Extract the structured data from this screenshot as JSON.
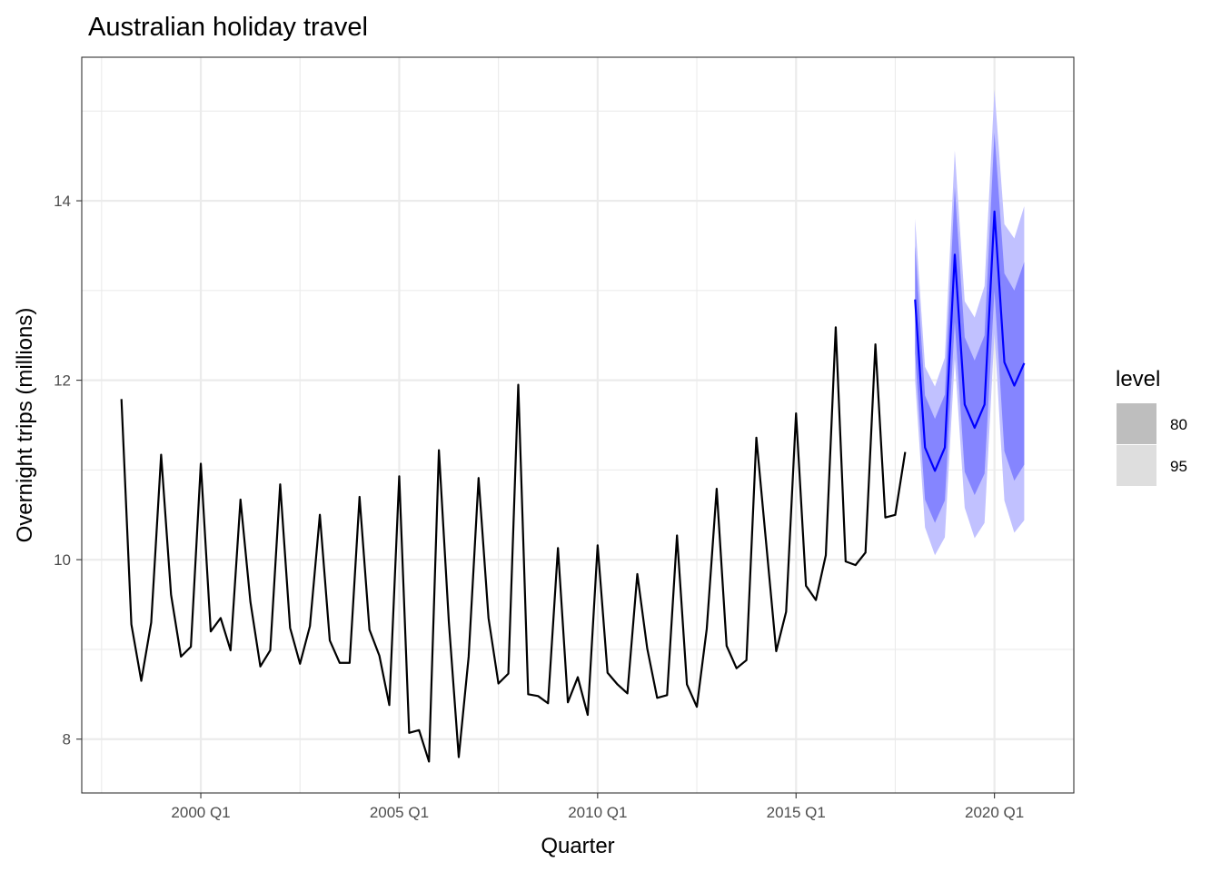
{
  "chart_data": {
    "type": "line",
    "title": "Australian holiday travel",
    "xlabel": "Quarter",
    "ylabel": "Overnight trips (millions)",
    "x_ticks": [
      "2000 Q1",
      "2005 Q1",
      "2010 Q1",
      "2015 Q1",
      "2020 Q1"
    ],
    "y_ticks": [
      8,
      10,
      12,
      14
    ],
    "ylim": [
      7.4,
      15.6
    ],
    "xlim": [
      "1997 Q1",
      "2022 Q1"
    ],
    "grid": true,
    "start": "1998 Q1",
    "history": {
      "values": [
        11.79,
        9.28,
        8.65,
        9.3,
        11.17,
        9.61,
        8.92,
        9.03,
        11.07,
        9.2,
        9.35,
        8.99,
        10.67,
        9.53,
        8.81,
        8.99,
        10.84,
        9.24,
        8.84,
        9.26,
        10.5,
        9.1,
        8.85,
        8.85,
        10.7,
        9.22,
        8.93,
        8.38,
        10.93,
        8.07,
        8.1,
        7.75,
        11.22,
        9.31,
        7.8,
        8.92,
        10.91,
        9.35,
        8.62,
        8.73,
        11.95,
        8.5,
        8.48,
        8.4,
        10.13,
        8.41,
        8.69,
        8.27,
        10.16,
        8.74,
        8.61,
        8.51,
        9.84,
        9.01,
        8.46,
        8.49,
        10.27,
        8.61,
        8.36,
        9.23,
        10.79,
        9.04,
        8.79,
        8.88,
        11.36,
        10.17,
        8.98,
        9.42,
        11.63,
        9.71,
        9.55,
        10.05,
        12.59,
        9.98,
        9.94,
        10.08,
        12.4,
        10.47,
        10.5,
        11.2
      ]
    },
    "forecast": {
      "start": "2018 Q1",
      "mean": [
        12.9,
        11.25,
        10.99,
        11.25,
        13.4,
        11.73,
        11.47,
        11.73,
        13.88,
        12.2,
        11.94,
        12.19
      ],
      "lo80": [
        12.3,
        10.67,
        10.41,
        10.66,
        12.65,
        10.98,
        10.72,
        10.96,
        13.0,
        11.21,
        10.88,
        11.06
      ],
      "hi80": [
        13.5,
        11.83,
        11.57,
        11.84,
        14.15,
        12.48,
        12.22,
        12.5,
        14.76,
        13.19,
        13.0,
        13.32
      ],
      "lo95": [
        12.0,
        10.36,
        10.05,
        10.25,
        12.24,
        10.58,
        10.24,
        10.41,
        12.52,
        10.66,
        10.3,
        10.44
      ],
      "hi95": [
        13.8,
        12.15,
        11.93,
        12.25,
        14.56,
        12.88,
        12.7,
        13.05,
        15.24,
        13.74,
        13.58,
        13.94
      ]
    },
    "legend": {
      "title": "level",
      "position": "right",
      "entries": [
        {
          "label": "80",
          "color": "#bebebe"
        },
        {
          "label": "95",
          "color": "#dedede"
        }
      ]
    },
    "colors": {
      "history": "#000000",
      "forecast": "#0000ff",
      "band80": "#8585ff",
      "band95": "#c1c1ff"
    }
  }
}
